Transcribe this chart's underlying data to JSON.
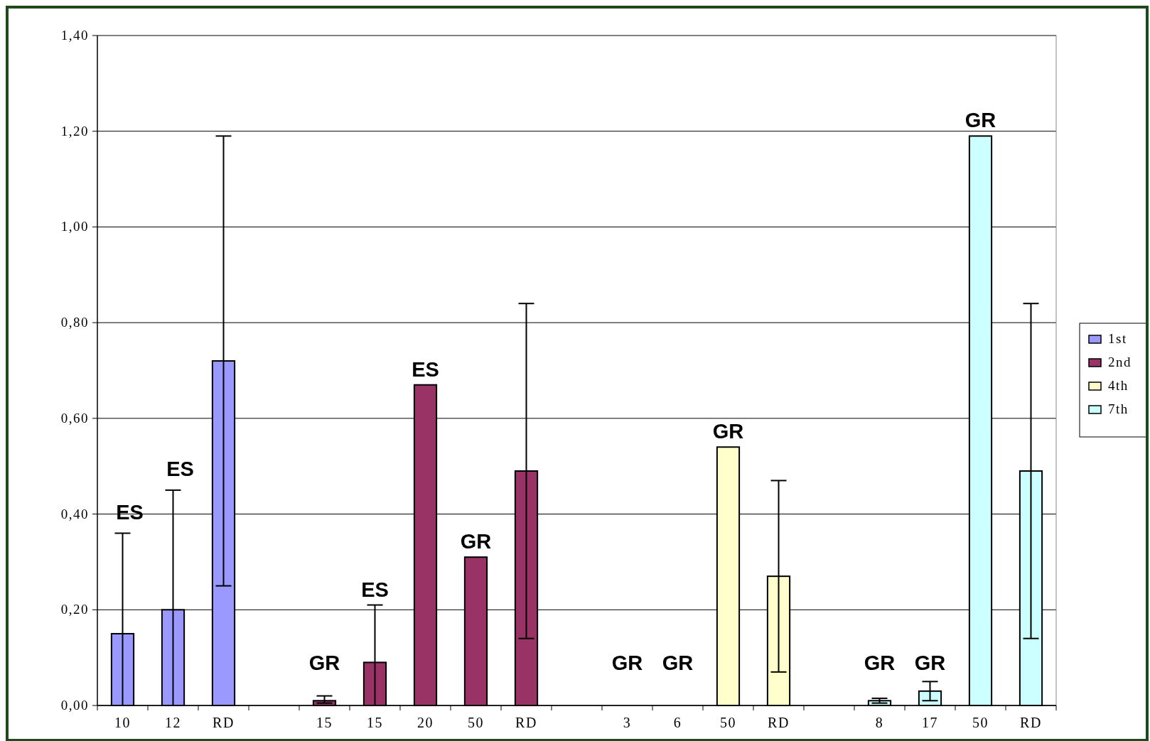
{
  "chart_data": {
    "type": "bar",
    "categories": [
      "10",
      "12",
      "RD",
      null,
      "15",
      "15",
      "20",
      "50",
      "RD",
      null,
      "3",
      "6",
      "50",
      "RD",
      null,
      "8",
      "17",
      "50",
      "RD"
    ],
    "series": [
      {
        "name": "1st",
        "color": "#9999ff",
        "values": [
          0.15,
          0.2,
          0.72,
          null,
          null,
          null,
          null,
          null,
          null,
          null,
          null,
          null,
          null,
          null,
          null,
          null,
          null,
          null,
          null
        ],
        "errors": [
          [
            0,
            0.36
          ],
          [
            0,
            0.45
          ],
          [
            0.25,
            1.19
          ],
          null,
          null,
          null,
          null,
          null,
          null,
          null,
          null,
          null,
          null,
          null,
          null,
          null,
          null,
          null,
          null
        ],
        "value_labels": [
          null,
          null,
          null,
          null,
          null,
          null,
          null,
          null,
          null,
          null,
          null,
          null,
          null,
          null,
          null,
          null,
          null,
          null,
          null
        ]
      },
      {
        "name": "2nd",
        "color": "#993366",
        "values": [
          null,
          null,
          null,
          null,
          0.01,
          0.09,
          0.67,
          0.31,
          0.49,
          null,
          null,
          null,
          null,
          null,
          null,
          null,
          null,
          null,
          null
        ],
        "errors": [
          null,
          null,
          null,
          null,
          [
            0.005,
            0.02
          ],
          [
            0,
            0.21
          ],
          null,
          null,
          [
            0.14,
            0.84
          ],
          null,
          null,
          null,
          null,
          null,
          null,
          null,
          null,
          null,
          null
        ],
        "value_labels": [
          null,
          null,
          null,
          null,
          "GR",
          "ES",
          "ES",
          "GR",
          null,
          null,
          null,
          null,
          null,
          null,
          null,
          null,
          null,
          null,
          null
        ]
      },
      {
        "name": "4th",
        "color": "#ffffcc",
        "values": [
          null,
          null,
          null,
          null,
          null,
          null,
          null,
          null,
          null,
          null,
          0,
          0,
          0.54,
          0.27,
          null,
          null,
          null,
          null,
          null
        ],
        "errors": [
          null,
          null,
          null,
          null,
          null,
          null,
          null,
          null,
          null,
          null,
          null,
          null,
          null,
          [
            0.07,
            0.47
          ],
          null,
          null,
          null,
          null,
          null
        ],
        "value_labels": [
          null,
          null,
          null,
          null,
          null,
          null,
          null,
          null,
          null,
          null,
          "GR",
          "GR",
          "GR",
          null,
          null,
          null,
          null,
          null,
          null
        ]
      },
      {
        "name": "7th",
        "color": "#ccffff",
        "values": [
          null,
          null,
          null,
          null,
          null,
          null,
          null,
          null,
          null,
          null,
          null,
          null,
          null,
          null,
          null,
          0.01,
          0.03,
          1.19,
          0.49
        ],
        "errors": [
          null,
          null,
          null,
          null,
          null,
          null,
          null,
          null,
          null,
          null,
          null,
          null,
          null,
          null,
          null,
          [
            0.005,
            0.015
          ],
          [
            0.01,
            0.05
          ],
          null,
          [
            0.14,
            0.84
          ]
        ],
        "value_labels": [
          null,
          null,
          null,
          null,
          null,
          null,
          null,
          null,
          null,
          null,
          null,
          null,
          null,
          null,
          null,
          "GR",
          "GR",
          "GR",
          null
        ]
      }
    ],
    "annotations": [
      {
        "text": "ES",
        "x": "10",
        "y": 0.36
      },
      {
        "text": "ES",
        "x": "12",
        "y": 0.45
      }
    ],
    "ylim": [
      0,
      1.4
    ],
    "yticks": [
      {
        "value": 0,
        "label": "0,00"
      },
      {
        "value": 0.2,
        "label": "0,20"
      },
      {
        "value": 0.4,
        "label": "0,40"
      },
      {
        "value": 0.6,
        "label": "0,60"
      },
      {
        "value": 0.8,
        "label": "0,80"
      },
      {
        "value": 1.0,
        "label": "1,00"
      },
      {
        "value": 1.2,
        "label": "1,20"
      },
      {
        "value": 1.4,
        "label": "1,40"
      }
    ],
    "grid": "y",
    "legend": "right"
  }
}
